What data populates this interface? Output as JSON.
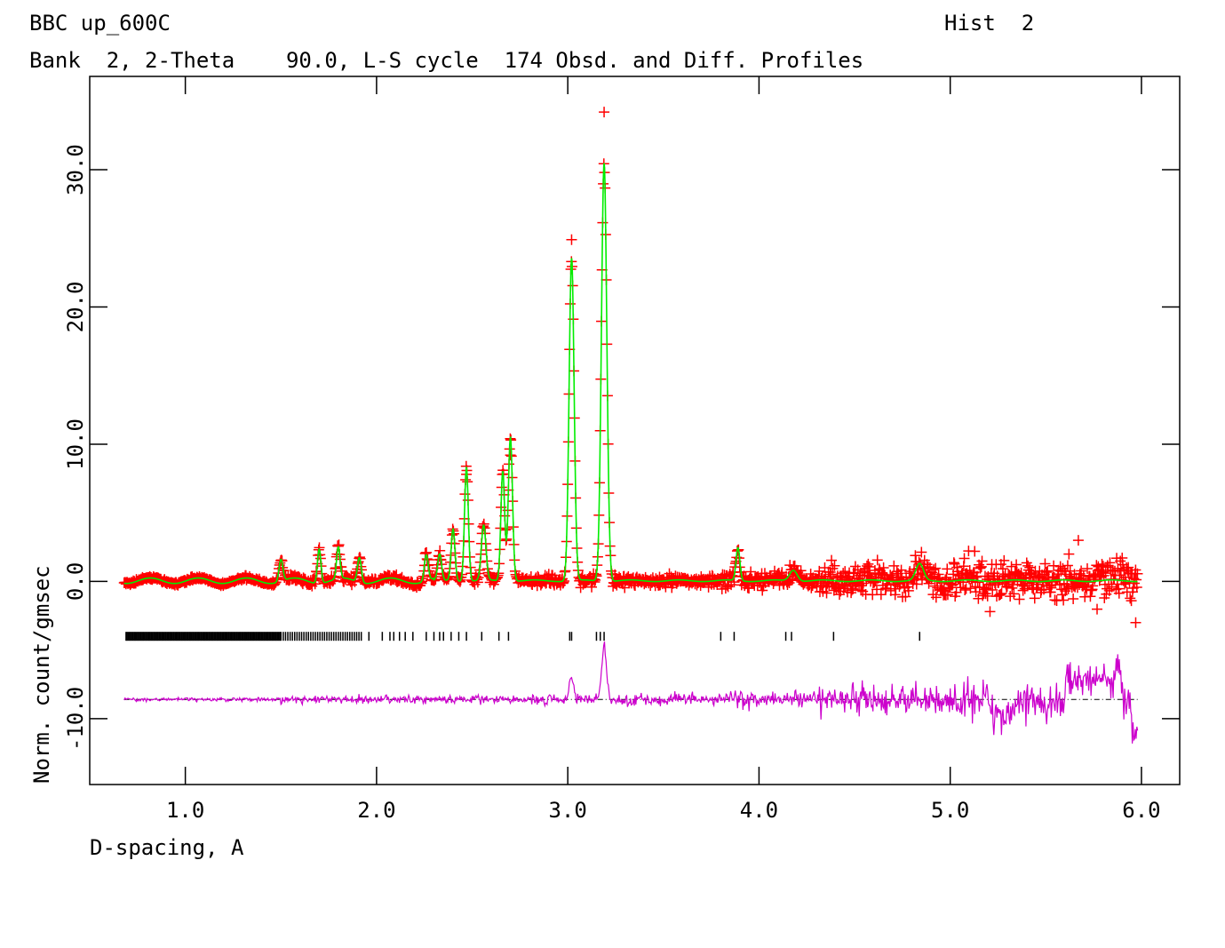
{
  "header": {
    "title_left": "BBC up_600C",
    "title_right": "Hist  2",
    "subtitle": "Bank  2, 2-Theta    90.0, L-S cycle  174 Obsd. and Diff. Profiles"
  },
  "chart_data": {
    "type": "line",
    "xlabel": "D-spacing, A",
    "ylabel": "Norm. count/gmsec",
    "xlim": [
      0.5,
      6.2
    ],
    "ylim": [
      -14.8,
      36.8
    ],
    "x_ticks": [
      1.0,
      2.0,
      3.0,
      4.0,
      5.0,
      6.0
    ],
    "x_tick_labels": [
      "1.0",
      "2.0",
      "3.0",
      "4.0",
      "5.0",
      "6.0"
    ],
    "y_ticks": [
      -10.0,
      0.0,
      10.0,
      20.0,
      30.0
    ],
    "y_tick_labels": [
      "-10.0",
      "0.0",
      "10.0",
      "20.0",
      "30.0"
    ],
    "x_range": [
      0.68,
      5.98
    ],
    "background": 0.05,
    "peaks": [
      {
        "d": 1.5,
        "h": 1.6,
        "w": 0.01
      },
      {
        "d": 1.7,
        "h": 2.5,
        "w": 0.009
      },
      {
        "d": 1.8,
        "h": 2.3,
        "w": 0.009
      },
      {
        "d": 1.91,
        "h": 1.8,
        "w": 0.01
      },
      {
        "d": 2.26,
        "h": 1.9,
        "w": 0.01
      },
      {
        "d": 2.33,
        "h": 1.9,
        "w": 0.01
      },
      {
        "d": 2.4,
        "h": 3.8,
        "w": 0.01
      },
      {
        "d": 2.47,
        "h": 8.3,
        "w": 0.01
      },
      {
        "d": 2.56,
        "h": 4.0,
        "w": 0.012
      },
      {
        "d": 2.66,
        "h": 8.0,
        "w": 0.01
      },
      {
        "d": 2.7,
        "h": 10.5,
        "w": 0.011
      },
      {
        "d": 3.02,
        "h": 23.5,
        "w": 0.013
      },
      {
        "d": 3.19,
        "h": 30.5,
        "w": 0.014
      },
      {
        "d": 3.89,
        "h": 2.4,
        "w": 0.01
      },
      {
        "d": 4.18,
        "h": 0.8,
        "w": 0.02
      },
      {
        "d": 4.84,
        "h": 1.2,
        "w": 0.02
      }
    ],
    "max_obs_points": [
      {
        "x": 3.19,
        "y": 34.2
      },
      {
        "x": 3.02,
        "y": 24.9
      },
      {
        "x": 2.7,
        "y": 9.2
      },
      {
        "x": 2.47,
        "y": 7.8
      },
      {
        "x": 5.67,
        "y": 3.0
      },
      {
        "x": 5.97,
        "y": -3.0
      }
    ],
    "reflection_tick_y": -4.0,
    "difference_offset": -8.6,
    "reflection_positions": [
      1.96,
      2.03,
      2.07,
      2.09,
      2.12,
      2.15,
      2.19,
      2.26,
      2.3,
      2.33,
      2.35,
      2.39,
      2.43,
      2.47,
      2.55,
      2.64,
      2.69,
      3.01,
      3.02,
      3.15,
      3.17,
      3.19,
      3.8,
      3.87,
      4.14,
      4.17,
      4.39,
      4.84
    ],
    "dense_tick_region": [
      0.69,
      1.93
    ],
    "series": [
      {
        "role": "observed",
        "marker": "+",
        "color": "#ff0000"
      },
      {
        "role": "calculated",
        "color": "#00ee00"
      },
      {
        "role": "reflection ticks",
        "color": "#000000"
      },
      {
        "role": "difference",
        "color": "#cc00cc"
      },
      {
        "role": "difference baseline",
        "color": "#000000"
      }
    ]
  }
}
